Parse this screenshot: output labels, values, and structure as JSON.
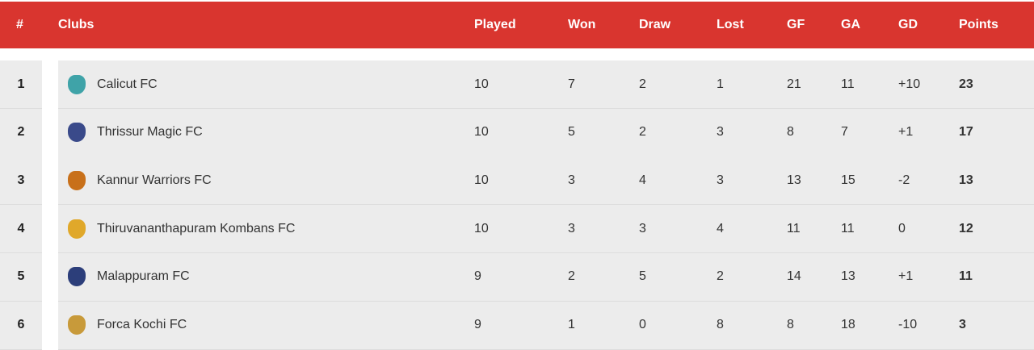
{
  "header": {
    "rank": "#",
    "clubs": "Clubs",
    "played": "Played",
    "won": "Won",
    "draw": "Draw",
    "lost": "Lost",
    "gf": "GF",
    "ga": "GA",
    "gd": "GD",
    "points": "Points"
  },
  "colors": {
    "header": "#d9352f",
    "row": "#ececec"
  },
  "rows": [
    {
      "rank": "1",
      "club": "Calicut FC",
      "played": "10",
      "won": "7",
      "draw": "2",
      "lost": "1",
      "gf": "21",
      "ga": "11",
      "gd": "+10",
      "points": "23",
      "logo_color": "#3fa3a8"
    },
    {
      "rank": "2",
      "club": "Thrissur Magic FC",
      "played": "10",
      "won": "5",
      "draw": "2",
      "lost": "3",
      "gf": "8",
      "ga": "7",
      "gd": "+1",
      "points": "17",
      "logo_color": "#3a4a8a"
    },
    {
      "rank": "3",
      "club": "Kannur Warriors FC",
      "played": "10",
      "won": "3",
      "draw": "4",
      "lost": "3",
      "gf": "13",
      "ga": "15",
      "gd": "-2",
      "points": "13",
      "logo_color": "#c8701a"
    },
    {
      "rank": "4",
      "club": "Thiruvananthapuram Kombans FC",
      "played": "10",
      "won": "3",
      "draw": "3",
      "lost": "4",
      "gf": "11",
      "ga": "11",
      "gd": "0",
      "points": "12",
      "logo_color": "#e0a82a"
    },
    {
      "rank": "5",
      "club": "Malappuram FC",
      "played": "9",
      "won": "2",
      "draw": "5",
      "lost": "2",
      "gf": "14",
      "ga": "13",
      "gd": "+1",
      "points": "11",
      "logo_color": "#2c3e7a"
    },
    {
      "rank": "6",
      "club": "Forca Kochi FC",
      "played": "9",
      "won": "1",
      "draw": "0",
      "lost": "8",
      "gf": "8",
      "ga": "18",
      "gd": "-10",
      "points": "3",
      "logo_color": "#c89a3a"
    }
  ]
}
